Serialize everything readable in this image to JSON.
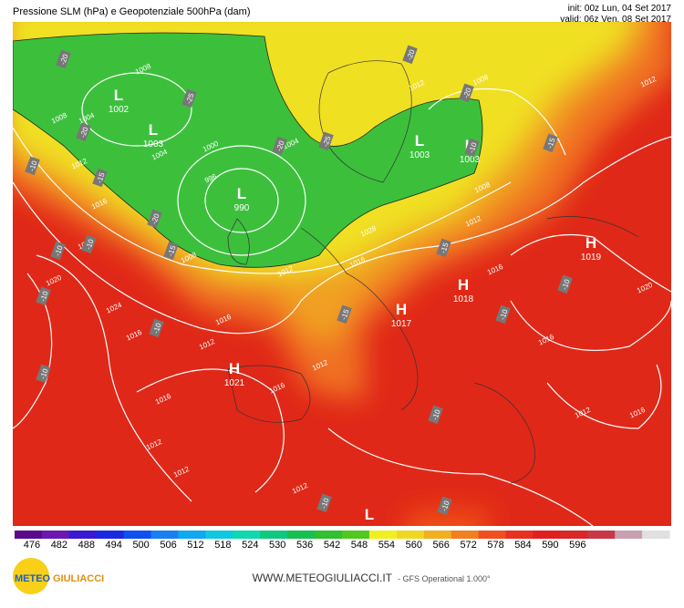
{
  "header": {
    "title": "Pressione SLM (hPa) e Geopotenziale 500hPa (dam)",
    "init": "init: 00z Lun, 04 Set 2017",
    "valid": "valid: 06z Ven, 08 Set 2017"
  },
  "centers": [
    {
      "letter": "L",
      "value": "1002"
    },
    {
      "letter": "L",
      "value": "1003"
    },
    {
      "letter": "L",
      "value": "990"
    },
    {
      "letter": "L",
      "value": "1003"
    },
    {
      "letter": "L",
      "value": "1003"
    },
    {
      "letter": "H",
      "value": "1019"
    },
    {
      "letter": "H",
      "value": "1018"
    },
    {
      "letter": "H",
      "value": "1017"
    },
    {
      "letter": "H",
      "value": "1021"
    },
    {
      "letter": "L",
      "value": null
    }
  ],
  "isobar_labels": [
    "1008",
    "1004",
    "1008",
    "1012",
    "1008",
    "1012",
    "1000",
    "1004",
    "996",
    "1004",
    "1012",
    "1016",
    "1020",
    "1028",
    "1008",
    "1012",
    "1016",
    "1008",
    "1012",
    "1016",
    "1012",
    "1016",
    "1020",
    "1024",
    "1016",
    "1012",
    "1016",
    "1020",
    "1016",
    "1012",
    "1016",
    "1012",
    "1012",
    "1012",
    "1016"
  ],
  "temp_labels": [
    "-20",
    "-25",
    "-20",
    "-25",
    "-20",
    "-20",
    "-15",
    "-20",
    "-15",
    "-10",
    "-15",
    "-20",
    "-10",
    "-10",
    "-10",
    "-15",
    "-15",
    "-10",
    "-10",
    "-10",
    "-10",
    "-10",
    "-10",
    "-10",
    "-10"
  ],
  "scale": {
    "labels": [
      "476",
      "482",
      "488",
      "494",
      "500",
      "506",
      "512",
      "518",
      "524",
      "530",
      "536",
      "542",
      "548",
      "554",
      "560",
      "566",
      "572",
      "578",
      "584",
      "590",
      "596"
    ],
    "colors": [
      "#5a0a8a",
      "#6a18b0",
      "#3a1ad0",
      "#1a2ae0",
      "#1050f0",
      "#1880f0",
      "#10a8f0",
      "#10c8e0",
      "#10d8b0",
      "#10c880",
      "#18c050",
      "#30c030",
      "#50c820",
      "#f0f020",
      "#f0d820",
      "#f0b020",
      "#f08020",
      "#f05020",
      "#e83020",
      "#e02020",
      "#d82828",
      "#c83848",
      "#c8a0b0",
      "#e0e0e0"
    ]
  },
  "footer": {
    "logo_a": "METEO",
    "logo_b": "GIULIACCI",
    "site": "WWW.METEOGIULIACCI.IT",
    "model": "- GFS Operational 1.000°"
  }
}
